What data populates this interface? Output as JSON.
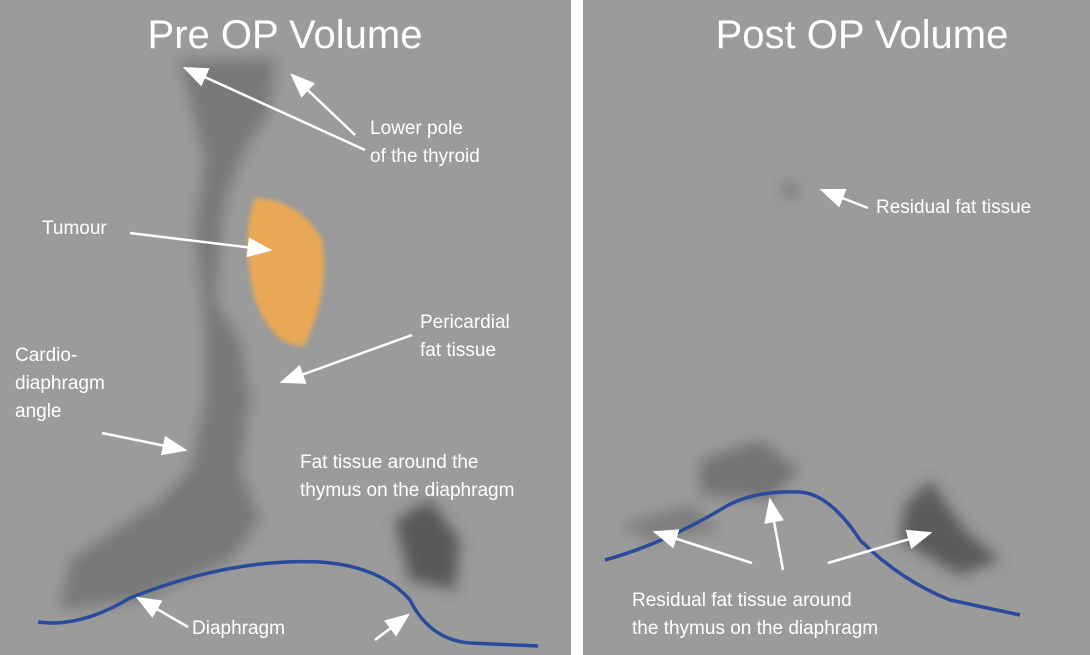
{
  "panels": [
    {
      "title": "Pre OP Volume",
      "labels": [
        [
          "Lower pole",
          "of the thyroid"
        ],
        [
          "Tumour"
        ],
        [
          "Pericardial",
          "fat tissue"
        ],
        [
          "Cardio-",
          "diaphragm",
          "angle"
        ],
        [
          "Fat tissue around the",
          "thymus on the diaphragm"
        ],
        [
          "Diaphragm"
        ]
      ]
    },
    {
      "title": "Post OP Volume",
      "labels": [
        [
          "Residual fat tissue"
        ],
        [
          "Residual fat tissue around",
          "the thymus on the diaphragm"
        ]
      ]
    }
  ]
}
